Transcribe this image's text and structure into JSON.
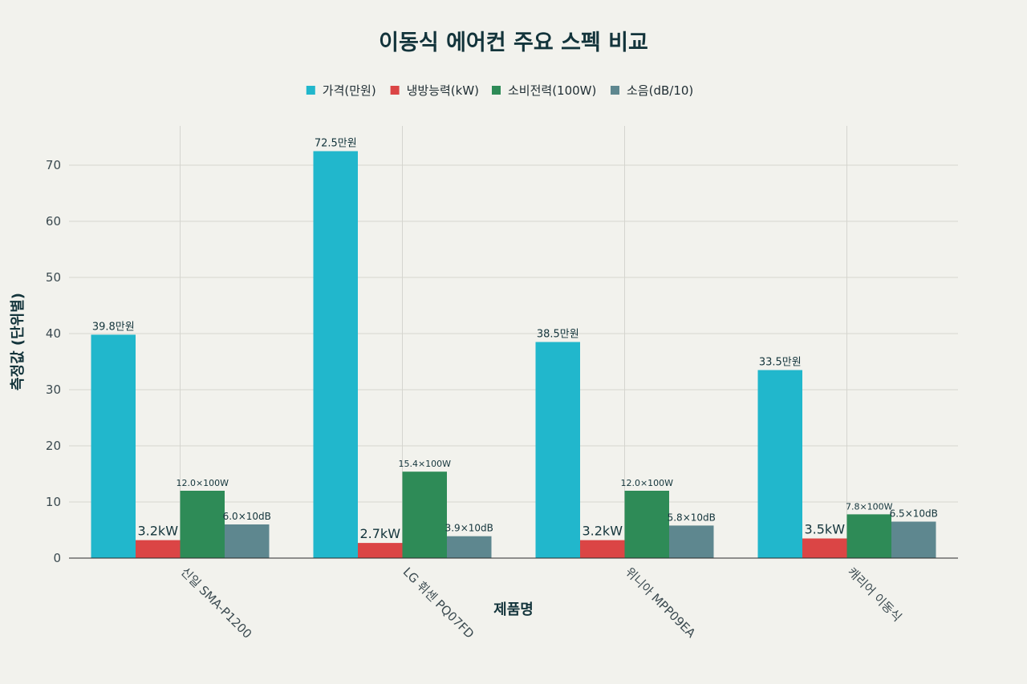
{
  "chart_data": {
    "type": "bar",
    "title": "이동식 에어컨 주요 스펙 비교",
    "xlabel": "제품명",
    "ylabel": "측정값 (단위별)",
    "categories": [
      "신일 SMA-P1200",
      "LG 휘센 PQ07FD",
      "위니아 MPP09EA",
      "캐리어 이동식"
    ],
    "ylim": [
      0,
      77
    ],
    "yticks": [
      0,
      10,
      20,
      30,
      40,
      50,
      60,
      70
    ],
    "grid": true,
    "legend_position": "top",
    "series": [
      {
        "name": "가격(만원)",
        "color": "#21b7cc",
        "values": [
          39.8,
          72.5,
          38.5,
          33.5
        ],
        "labels": [
          "39.8만원",
          "72.5만원",
          "38.5만원",
          "33.5만원"
        ],
        "label_size": 13
      },
      {
        "name": "냉방능력(kW)",
        "color": "#db4545",
        "values": [
          3.2,
          2.7,
          3.2,
          3.5
        ],
        "labels": [
          "3.2kW",
          "2.7kW",
          "3.2kW",
          "3.5kW"
        ],
        "label_size": 16
      },
      {
        "name": "소비전력(100W)",
        "color": "#2e8b57",
        "values": [
          12.0,
          15.4,
          12.0,
          7.8
        ],
        "labels": [
          "12.0×100W",
          "15.4×100W",
          "12.0×100W",
          "7.8×100W"
        ],
        "label_size": 11
      },
      {
        "name": "소음(dB/10)",
        "color": "#5e878f",
        "values": [
          6.0,
          3.9,
          5.8,
          6.5
        ],
        "labels": [
          "6.0×10dB",
          "3.9×10dB",
          "5.8×10dB",
          "6.5×10dB"
        ],
        "label_size": 12
      }
    ]
  }
}
